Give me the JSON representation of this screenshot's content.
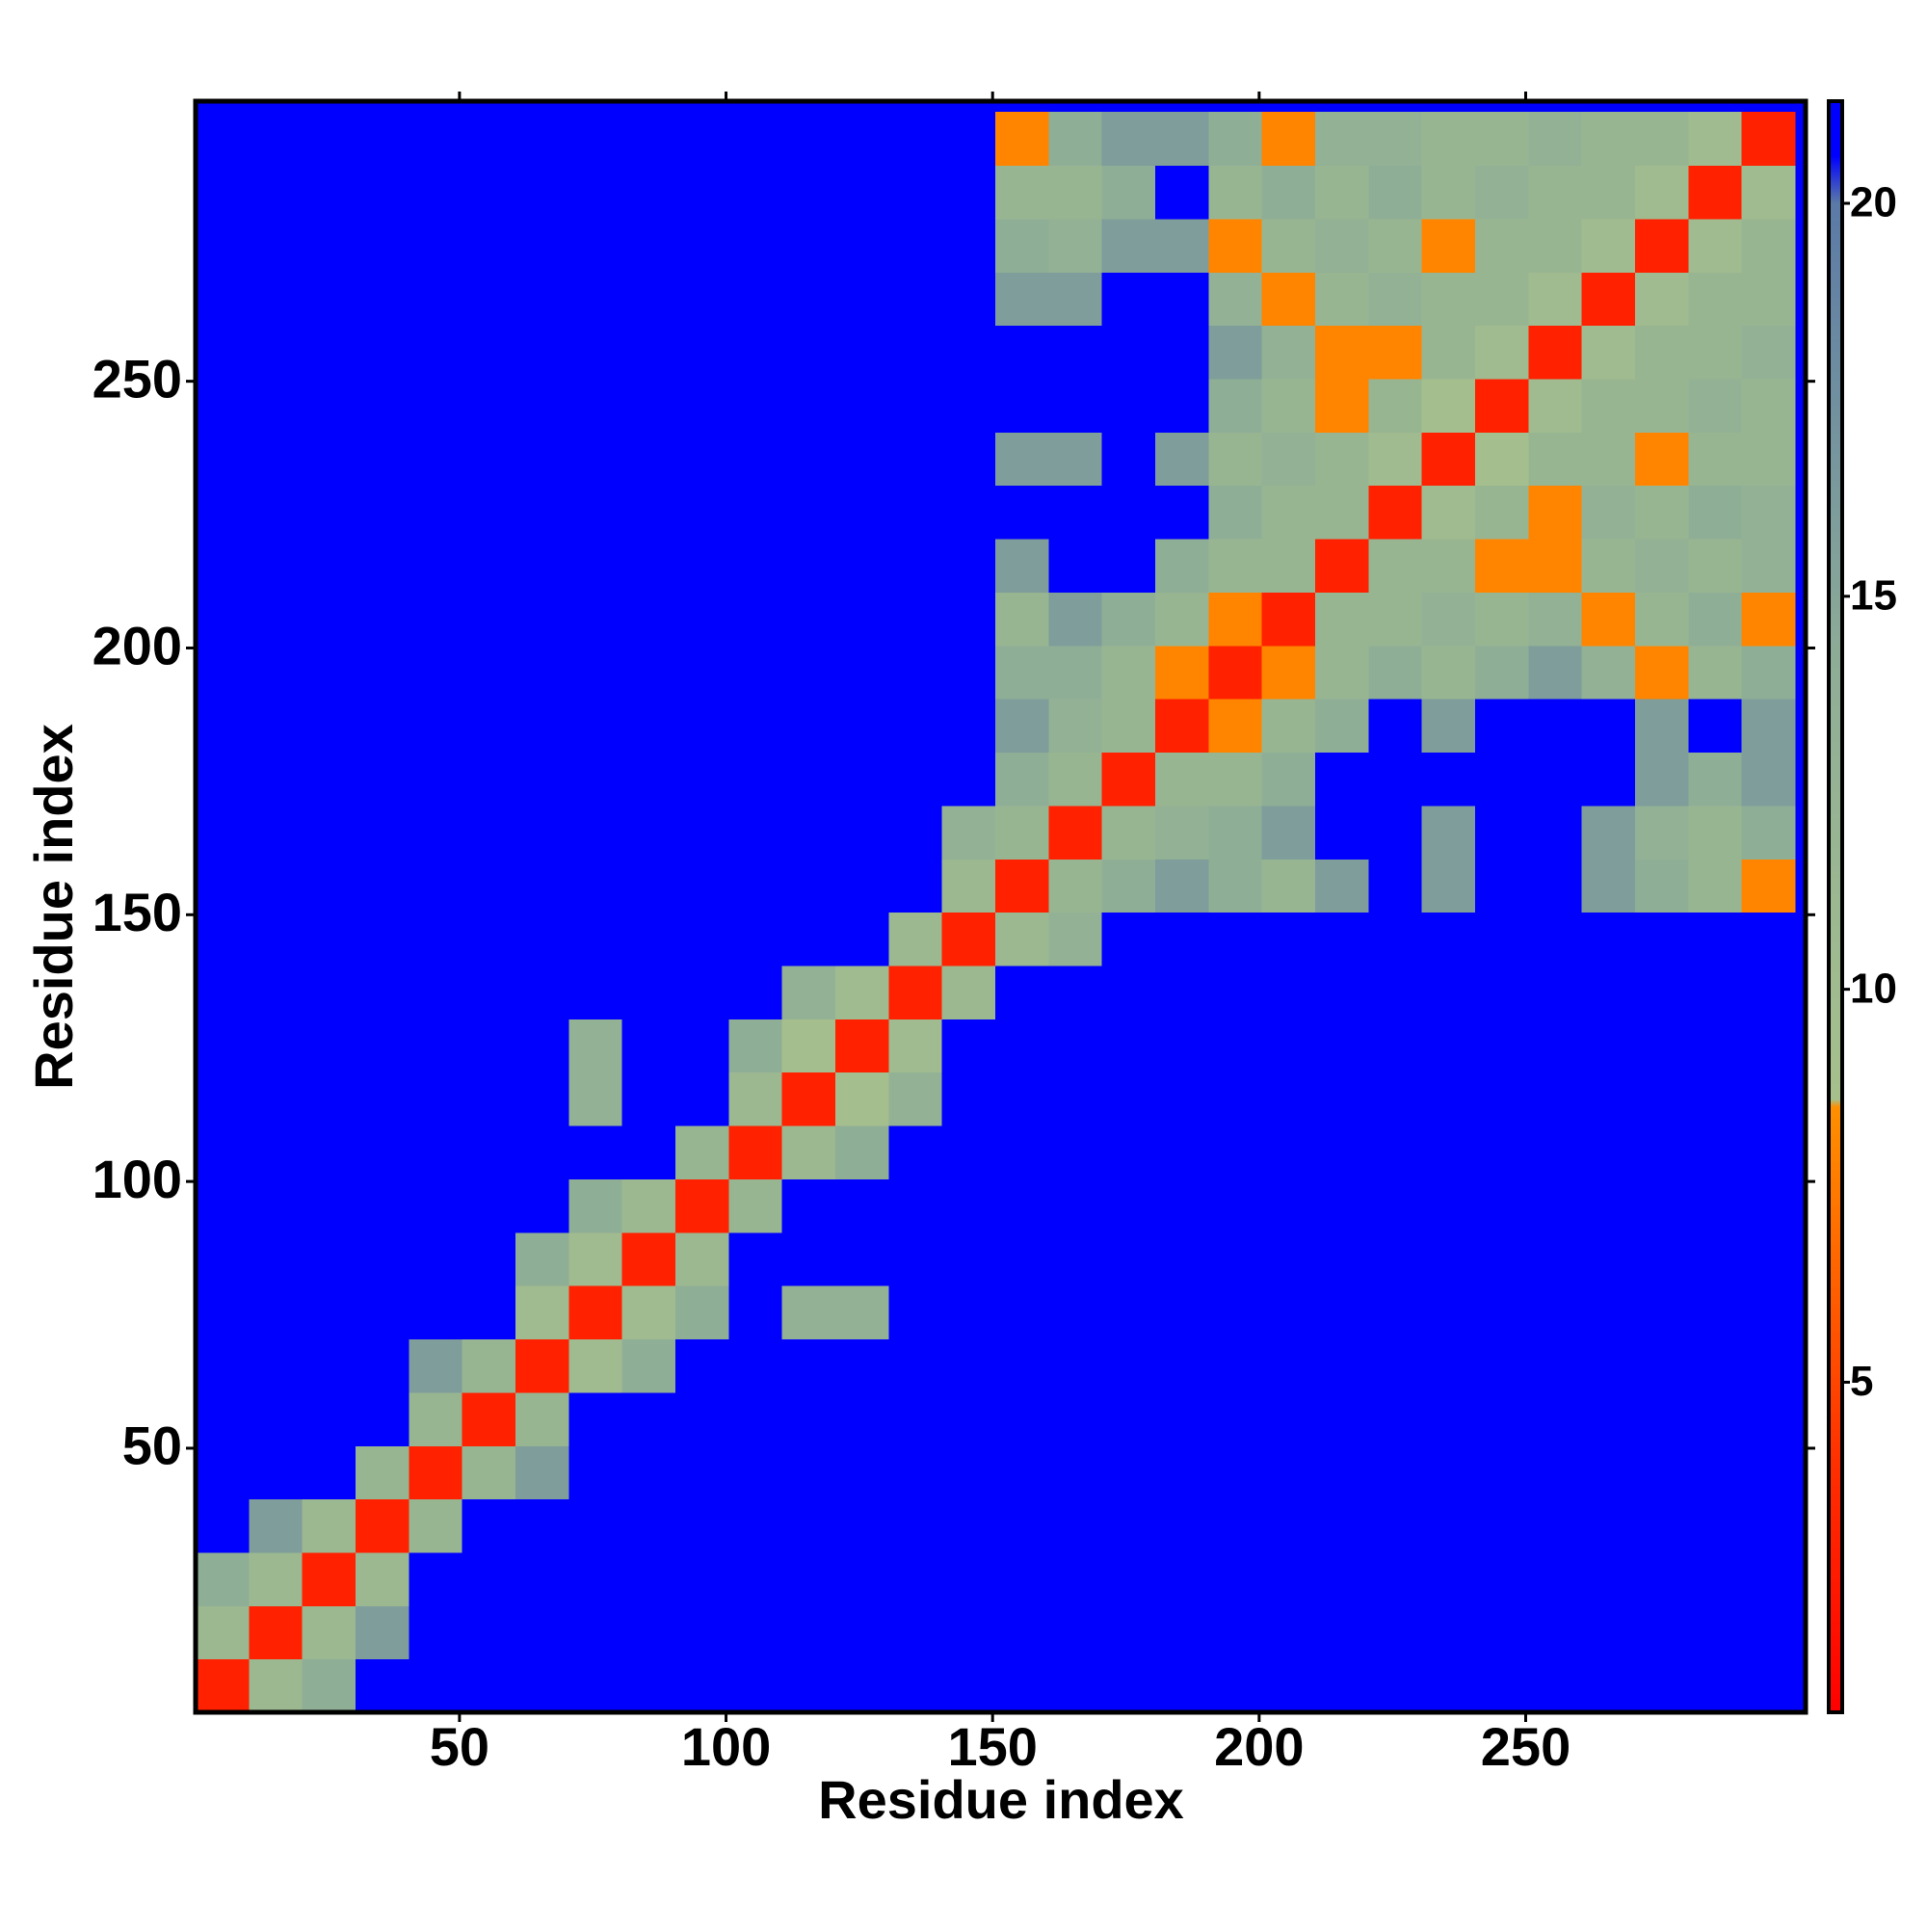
{
  "chart_data": {
    "type": "heatmap",
    "xlabel": "Residue index",
    "ylabel": "Residue index",
    "xlim": [
      0.5,
      302.5
    ],
    "ylim": [
      0.5,
      302.5
    ],
    "xticks": [
      50,
      100,
      150,
      200,
      250
    ],
    "yticks": [
      50,
      100,
      150,
      200,
      250
    ],
    "x_bins": [
      0.5,
      10.5,
      20.5,
      30.5,
      40.5,
      50.5,
      60.5,
      70.5,
      80.5,
      90.5,
      100.5,
      110.5,
      120.5,
      130.5,
      140.5,
      150.5,
      160.5,
      170.5,
      180.5,
      190.5,
      200.5,
      210.5,
      220.5,
      230.5,
      240.5,
      250.5,
      260.5,
      270.5,
      280.5,
      290.5,
      300.5
    ],
    "y_bins": [
      0.5,
      10.5,
      20.5,
      30.5,
      40.5,
      50.5,
      60.5,
      70.5,
      80.5,
      90.5,
      100.5,
      110.5,
      120.5,
      130.5,
      140.5,
      150.5,
      160.5,
      170.5,
      180.5,
      190.5,
      200.5,
      210.5,
      220.5,
      230.5,
      240.5,
      250.5,
      260.5,
      270.5,
      280.5,
      290.5,
      300.5
    ],
    "background": "#0000ff",
    "zlim": [
      0.8,
      21.3
    ],
    "zticks": [
      5,
      10,
      15,
      20
    ],
    "colorscale": [
      [
        0.8,
        "#ff0000"
      ],
      [
        4,
        "#ff3000"
      ],
      [
        8.5,
        "#ff9000"
      ],
      [
        8.6,
        "#a6c08c"
      ],
      [
        14,
        "#8fae96"
      ],
      [
        20,
        "#5b7aa6"
      ],
      [
        20.6,
        "#0000ff"
      ],
      [
        21.3,
        "#0000ff"
      ]
    ],
    "values": [
      [
        3,
        11,
        14,
        21,
        21,
        21,
        21,
        21,
        21,
        21,
        21,
        21,
        21,
        21,
        21,
        21,
        21,
        21,
        21,
        21,
        21,
        21,
        21,
        21,
        21,
        21,
        21,
        21,
        21,
        21
      ],
      [
        11,
        3,
        11,
        16,
        21,
        21,
        21,
        21,
        21,
        21,
        21,
        21,
        21,
        21,
        21,
        21,
        21,
        21,
        21,
        21,
        21,
        21,
        21,
        21,
        21,
        21,
        21,
        21,
        21,
        21
      ],
      [
        14,
        11,
        3,
        11,
        21,
        21,
        21,
        21,
        21,
        21,
        21,
        21,
        21,
        21,
        21,
        21,
        21,
        21,
        21,
        21,
        21,
        21,
        21,
        21,
        21,
        21,
        21,
        21,
        21,
        21
      ],
      [
        21,
        16,
        11,
        3,
        12,
        21,
        21,
        21,
        21,
        21,
        21,
        21,
        21,
        21,
        21,
        21,
        21,
        21,
        21,
        21,
        21,
        21,
        21,
        21,
        21,
        21,
        21,
        21,
        21,
        21
      ],
      [
        21,
        21,
        21,
        12,
        3,
        12,
        16,
        21,
        21,
        21,
        21,
        21,
        21,
        21,
        21,
        21,
        21,
        21,
        21,
        21,
        21,
        21,
        21,
        21,
        21,
        21,
        21,
        21,
        21,
        21
      ],
      [
        21,
        21,
        21,
        21,
        12,
        3,
        12,
        21,
        21,
        21,
        21,
        21,
        21,
        21,
        21,
        21,
        21,
        21,
        21,
        21,
        21,
        21,
        21,
        21,
        21,
        21,
        21,
        21,
        21,
        21
      ],
      [
        21,
        21,
        21,
        21,
        16,
        12,
        3,
        10,
        14,
        21,
        21,
        21,
        21,
        21,
        21,
        21,
        21,
        21,
        21,
        21,
        21,
        21,
        21,
        21,
        21,
        21,
        21,
        21,
        21,
        21
      ],
      [
        21,
        21,
        21,
        21,
        21,
        21,
        10,
        3,
        10,
        14,
        21,
        13,
        13,
        21,
        21,
        21,
        21,
        21,
        21,
        21,
        21,
        21,
        21,
        21,
        21,
        21,
        21,
        21,
        21,
        21
      ],
      [
        21,
        21,
        21,
        21,
        21,
        21,
        14,
        10,
        3,
        11,
        21,
        21,
        21,
        21,
        21,
        21,
        21,
        21,
        21,
        21,
        21,
        21,
        21,
        21,
        21,
        21,
        21,
        21,
        21,
        21
      ],
      [
        21,
        21,
        21,
        21,
        21,
        21,
        21,
        14,
        11,
        3,
        12,
        21,
        21,
        21,
        21,
        21,
        21,
        21,
        21,
        21,
        21,
        21,
        21,
        21,
        21,
        21,
        21,
        21,
        21,
        21
      ],
      [
        21,
        21,
        21,
        21,
        21,
        21,
        21,
        21,
        21,
        12,
        3,
        11,
        14,
        21,
        21,
        21,
        21,
        21,
        21,
        21,
        21,
        21,
        21,
        21,
        21,
        21,
        21,
        21,
        21,
        21
      ],
      [
        21,
        21,
        21,
        21,
        21,
        21,
        21,
        13,
        21,
        21,
        11,
        3,
        9,
        13,
        21,
        21,
        21,
        21,
        21,
        21,
        21,
        21,
        21,
        21,
        21,
        21,
        21,
        21,
        21,
        21
      ],
      [
        21,
        21,
        21,
        21,
        21,
        21,
        21,
        13,
        21,
        21,
        14,
        9,
        3,
        10,
        21,
        21,
        21,
        21,
        21,
        21,
        21,
        21,
        21,
        21,
        21,
        21,
        21,
        21,
        21,
        21
      ],
      [
        21,
        21,
        21,
        21,
        21,
        21,
        21,
        21,
        21,
        21,
        21,
        13,
        10,
        3,
        11,
        21,
        21,
        21,
        21,
        21,
        21,
        21,
        21,
        21,
        21,
        21,
        21,
        21,
        21,
        21
      ],
      [
        21,
        21,
        21,
        21,
        21,
        21,
        21,
        21,
        21,
        21,
        21,
        21,
        21,
        11,
        3,
        11,
        13,
        21,
        21,
        21,
        21,
        21,
        21,
        21,
        21,
        21,
        21,
        21,
        21,
        21
      ],
      [
        21,
        21,
        21,
        21,
        21,
        21,
        21,
        21,
        21,
        21,
        21,
        21,
        21,
        21,
        11,
        3,
        12,
        14,
        16,
        14,
        12,
        16,
        21,
        16,
        21,
        21,
        16,
        14,
        12,
        8
      ],
      [
        21,
        21,
        21,
        21,
        21,
        21,
        21,
        21,
        21,
        21,
        21,
        21,
        21,
        21,
        13,
        12,
        3,
        12,
        13,
        14,
        16,
        21,
        21,
        16,
        21,
        21,
        16,
        13,
        12,
        14
      ],
      [
        21,
        21,
        21,
        21,
        21,
        21,
        21,
        21,
        21,
        21,
        21,
        21,
        21,
        21,
        21,
        14,
        12,
        3,
        12,
        12,
        14,
        21,
        21,
        21,
        21,
        21,
        21,
        16,
        14,
        16
      ],
      [
        21,
        21,
        21,
        21,
        21,
        21,
        21,
        21,
        21,
        21,
        21,
        21,
        21,
        21,
        21,
        16,
        13,
        12,
        3,
        8,
        12,
        14,
        21,
        16,
        21,
        21,
        21,
        16,
        21,
        16
      ],
      [
        21,
        21,
        21,
        21,
        21,
        21,
        21,
        21,
        21,
        21,
        21,
        21,
        21,
        21,
        21,
        14,
        14,
        12,
        8,
        3,
        8,
        12,
        14,
        12,
        14,
        16,
        13,
        8,
        12,
        14
      ],
      [
        21,
        21,
        21,
        21,
        21,
        21,
        21,
        21,
        21,
        21,
        21,
        21,
        21,
        21,
        21,
        12,
        16,
        14,
        12,
        8,
        3,
        12,
        12,
        13,
        12,
        13,
        8,
        12,
        14,
        8
      ],
      [
        21,
        21,
        21,
        21,
        21,
        21,
        21,
        21,
        21,
        21,
        21,
        21,
        21,
        21,
        21,
        16,
        21,
        21,
        14,
        12,
        12,
        3,
        12,
        12,
        8,
        8,
        12,
        13,
        12,
        13
      ],
      [
        21,
        21,
        21,
        21,
        21,
        21,
        21,
        21,
        21,
        21,
        21,
        21,
        21,
        21,
        21,
        21,
        21,
        21,
        21,
        14,
        12,
        12,
        3,
        10,
        12,
        8,
        13,
        12,
        14,
        13
      ],
      [
        21,
        21,
        21,
        21,
        21,
        21,
        21,
        21,
        21,
        21,
        21,
        21,
        21,
        21,
        21,
        16,
        16,
        21,
        16,
        12,
        13,
        12,
        10,
        3,
        9,
        12,
        12,
        8,
        12,
        12
      ],
      [
        21,
        21,
        21,
        21,
        21,
        21,
        21,
        21,
        21,
        21,
        21,
        21,
        21,
        21,
        21,
        21,
        21,
        21,
        21,
        14,
        12,
        8,
        12,
        9,
        3,
        10,
        12,
        12,
        13,
        12
      ],
      [
        21,
        21,
        21,
        21,
        21,
        21,
        21,
        21,
        21,
        21,
        21,
        21,
        21,
        21,
        21,
        21,
        21,
        21,
        21,
        16,
        13,
        8,
        8,
        12,
        10,
        3,
        10,
        12,
        12,
        13
      ],
      [
        21,
        21,
        21,
        21,
        21,
        21,
        21,
        21,
        21,
        21,
        21,
        21,
        21,
        21,
        21,
        16,
        16,
        21,
        21,
        13,
        8,
        12,
        13,
        12,
        12,
        10,
        3,
        10,
        12,
        12
      ],
      [
        21,
        21,
        21,
        21,
        21,
        21,
        21,
        21,
        21,
        21,
        21,
        21,
        21,
        21,
        21,
        14,
        13,
        16,
        16,
        8,
        12,
        13,
        12,
        8,
        12,
        12,
        10,
        3,
        10,
        12
      ],
      [
        21,
        21,
        21,
        21,
        21,
        21,
        21,
        21,
        21,
        21,
        21,
        21,
        21,
        21,
        21,
        12,
        12,
        14,
        21,
        12,
        14,
        12,
        14,
        12,
        13,
        12,
        12,
        10,
        3,
        10
      ],
      [
        21,
        21,
        21,
        21,
        21,
        21,
        21,
        21,
        21,
        21,
        21,
        21,
        21,
        21,
        21,
        8,
        14,
        16,
        16,
        14,
        8,
        13,
        13,
        12,
        12,
        13,
        12,
        12,
        10,
        3
      ]
    ]
  }
}
